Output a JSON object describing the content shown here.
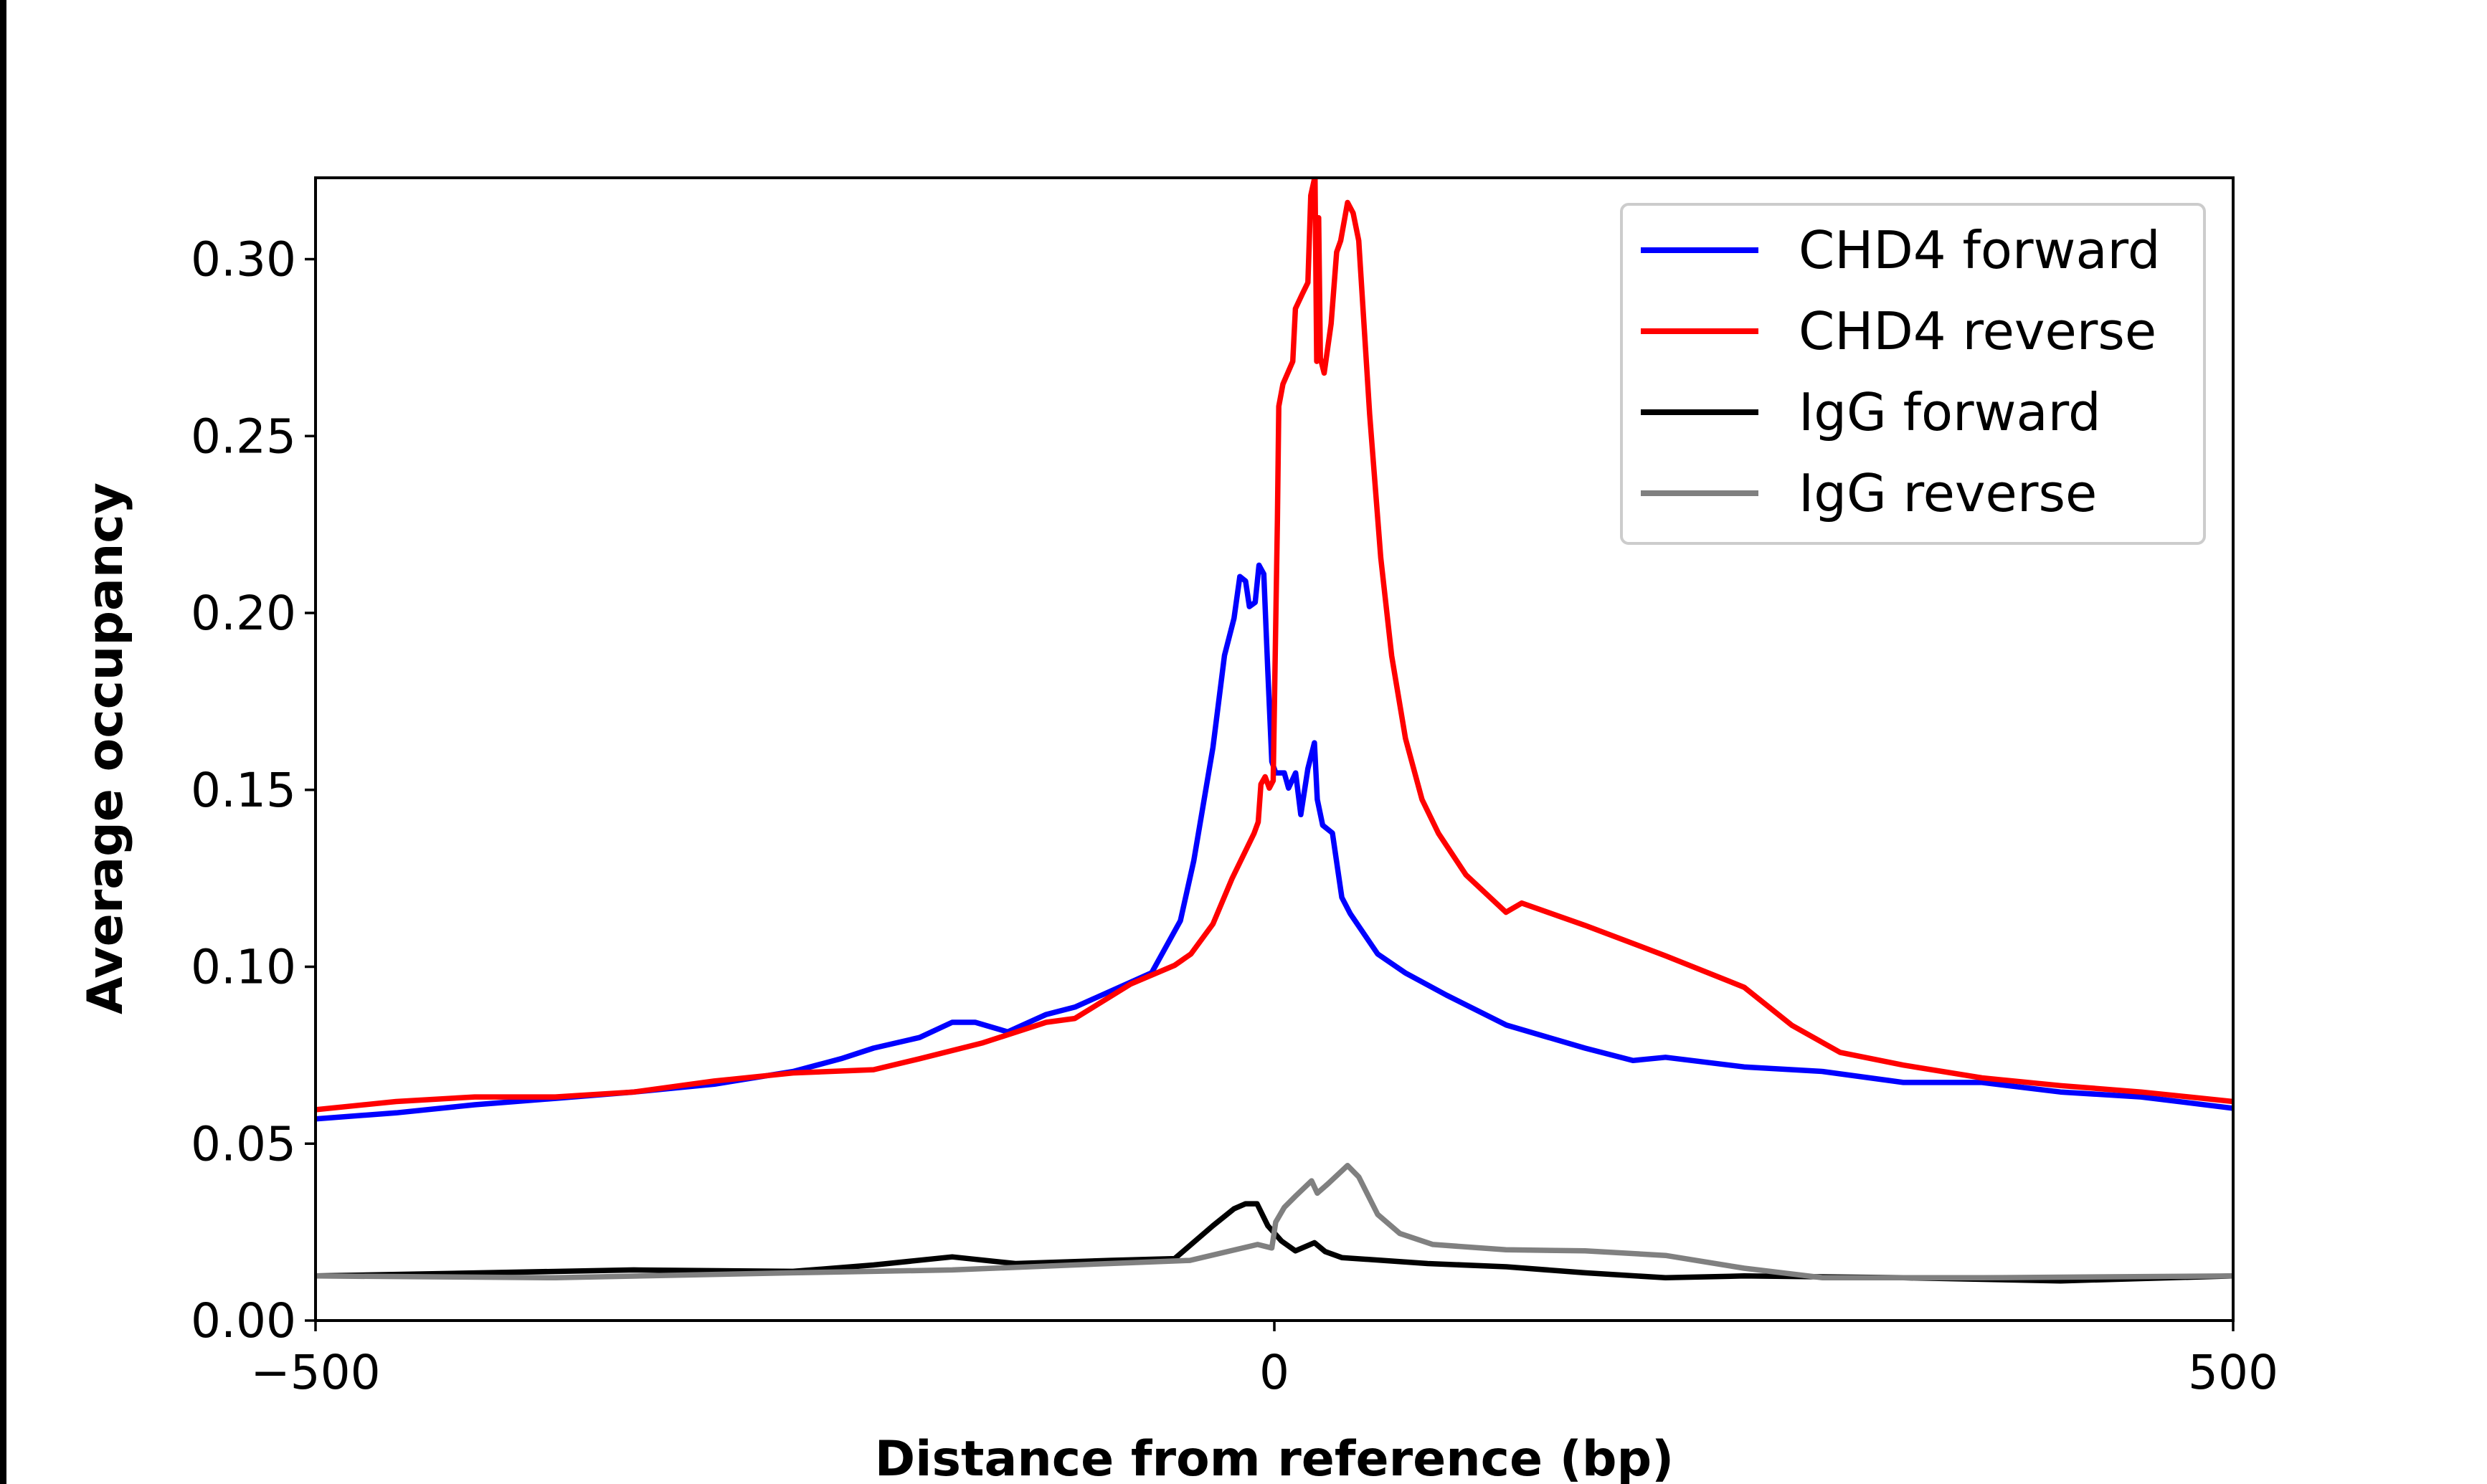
{
  "chart_data": {
    "type": "line",
    "title": "",
    "xlabel": "Distance from reference (bp)",
    "ylabel": "Average occupancy",
    "xlim": [
      -500,
      500
    ],
    "ylim": [
      0,
      0.323
    ],
    "xticks": [
      -500,
      0,
      500
    ],
    "xtick_labels": [
      "−500",
      "0",
      "500"
    ],
    "yticks": [
      0,
      0.05,
      0.1,
      0.15,
      0.2,
      0.25,
      0.3
    ],
    "ytick_labels": [
      "0.00",
      "0.05",
      "0.10",
      "0.15",
      "0.20",
      "0.25",
      "0.30"
    ],
    "grid": false,
    "legend_position": "top-right",
    "series": [
      {
        "name": "CHD4 forward",
        "color": "#0000ff",
        "x": [
          -500,
          -458,
          -417,
          -375,
          -334,
          -292,
          -251,
          -226,
          -209,
          -185,
          -168,
          -156,
          -139,
          -119,
          -104,
          -64,
          -49,
          -42,
          -32,
          -26,
          -21,
          -18,
          -15,
          -13,
          -10,
          -8,
          -5.5,
          -3.4,
          -1.3,
          0.7,
          5.2,
          7.4,
          11.1,
          13.8,
          17.5,
          20.9,
          22.4,
          25.2,
          30.3,
          35.2,
          39.6,
          53.9,
          68.2,
          89.7,
          121,
          162,
          187,
          204,
          245,
          286,
          328,
          369,
          410,
          452,
          500
        ],
        "y": [
          0.057,
          0.0587,
          0.061,
          0.0628,
          0.0646,
          0.0668,
          0.0704,
          0.074,
          0.077,
          0.08,
          0.0843,
          0.0843,
          0.0816,
          0.0865,
          0.0886,
          0.0983,
          0.113,
          0.13,
          0.162,
          0.188,
          0.1985,
          0.2103,
          0.209,
          0.2018,
          0.203,
          0.2135,
          0.211,
          0.1836,
          0.158,
          0.1548,
          0.1548,
          0.1505,
          0.1548,
          0.143,
          0.156,
          0.1633,
          0.1473,
          0.14,
          0.1378,
          0.1196,
          0.115,
          0.1036,
          0.0983,
          0.092,
          0.0835,
          0.077,
          0.0735,
          0.0744,
          0.0717,
          0.0704,
          0.0673,
          0.0673,
          0.0646,
          0.0632,
          0.06
        ]
      },
      {
        "name": "CHD4 reverse",
        "color": "#ff0000",
        "x": [
          -500,
          -458,
          -417,
          -375,
          -334,
          -292,
          -251,
          -209,
          -185,
          -152,
          -119,
          -104,
          -75,
          -52,
          -43.5,
          -32,
          -22,
          -10.6,
          -8.4,
          -7,
          -4.8,
          -2.6,
          -0.6,
          1.6,
          2.3,
          4.5,
          9.6,
          11,
          14.7,
          17.5,
          19,
          21.2,
          22.1,
          23.1,
          24,
          26,
          29.6,
          32.5,
          34.6,
          38.2,
          41.1,
          44,
          49.7,
          55.5,
          61.2,
          68.4,
          77,
          85.6,
          99.9,
          120.8,
          129,
          162,
          204,
          245,
          270,
          295,
          328,
          369,
          410,
          452,
          500
        ],
        "y": [
          0.0596,
          0.0619,
          0.0632,
          0.0632,
          0.0646,
          0.0677,
          0.07,
          0.0709,
          0.074,
          0.0785,
          0.0843,
          0.0854,
          0.0951,
          0.1004,
          0.1036,
          0.1121,
          0.125,
          0.1377,
          0.1409,
          0.1516,
          0.1537,
          0.1505,
          0.1526,
          0.2263,
          0.2584,
          0.2647,
          0.2711,
          0.286,
          0.2903,
          0.2934,
          0.318,
          0.3234,
          0.2711,
          0.3117,
          0.272,
          0.2678,
          0.2818,
          0.302,
          0.3052,
          0.316,
          0.313,
          0.3052,
          0.2562,
          0.2156,
          0.1879,
          0.1645,
          0.1473,
          0.1377,
          0.126,
          0.1154,
          0.118,
          0.1117,
          0.1031,
          0.0942,
          0.0834,
          0.0758,
          0.0722,
          0.0686,
          0.0664,
          0.0646,
          0.0619
        ]
      },
      {
        "name": "IgG forward",
        "color": "#000000",
        "x": [
          -500,
          -334,
          -251,
          -209,
          -168,
          -135,
          -86,
          -52,
          -32,
          -21,
          -15,
          -9,
          -3.4,
          3.7,
          11,
          20.9,
          26.5,
          35.2,
          80,
          121,
          162,
          204,
          245,
          328,
          410,
          500
        ],
        "y": [
          0.0126,
          0.0143,
          0.0139,
          0.0157,
          0.018,
          0.0161,
          0.017,
          0.0175,
          0.0268,
          0.0316,
          0.033,
          0.033,
          0.0268,
          0.0225,
          0.0197,
          0.022,
          0.0195,
          0.0178,
          0.0161,
          0.0152,
          0.0135,
          0.0121,
          0.0126,
          0.0121,
          0.0112,
          0.0126
        ]
      },
      {
        "name": "IgG reverse",
        "color": "#808080",
        "x": [
          -500,
          -375,
          -251,
          -168,
          -86,
          -44,
          -8.7,
          -1.3,
          0.7,
          5.2,
          11.1,
          19.4,
          22.4,
          28.1,
          38.2,
          44,
          53.9,
          65.5,
          82.7,
          120.8,
          162,
          204,
          245,
          286,
          369,
          500
        ],
        "y": [
          0.0126,
          0.0121,
          0.0135,
          0.0143,
          0.0161,
          0.017,
          0.0215,
          0.0205,
          0.0278,
          0.032,
          0.0352,
          0.0395,
          0.036,
          0.0387,
          0.0438,
          0.0406,
          0.03,
          0.0246,
          0.0215,
          0.02,
          0.0197,
          0.0184,
          0.0148,
          0.0121,
          0.0121,
          0.0126
        ]
      }
    ]
  }
}
